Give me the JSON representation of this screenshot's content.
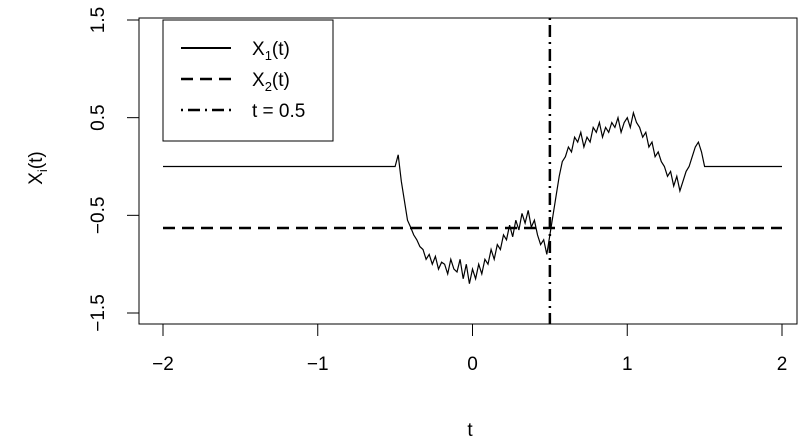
{
  "chart_data": {
    "type": "line",
    "xlabel": "t",
    "ylabel": {
      "base": "X",
      "sub": "i",
      "tail": "(t)"
    },
    "xlim": [
      -2,
      2
    ],
    "ylim": [
      -1.5,
      1.5
    ],
    "x_ticks": [
      -2,
      -1,
      0,
      1,
      2
    ],
    "x_tick_labels": [
      "−2",
      "−1",
      "0",
      "1",
      "2"
    ],
    "y_ticks": [
      -1.5,
      -0.5,
      0.5,
      1.5
    ],
    "y_tick_labels": [
      "−1.5",
      "−0.5",
      "0.5",
      "1.5"
    ],
    "grid": false,
    "legend_position": "top-left",
    "series": [
      {
        "name": "X1(t)",
        "legend": {
          "base": "X",
          "sub": "1",
          "tail": "(t)"
        },
        "style": "solid",
        "x": [
          -2.0,
          -0.5,
          -0.48,
          -0.46,
          -0.44,
          -0.42,
          -0.4,
          -0.38,
          -0.36,
          -0.34,
          -0.32,
          -0.3,
          -0.28,
          -0.26,
          -0.24,
          -0.22,
          -0.2,
          -0.18,
          -0.16,
          -0.14,
          -0.12,
          -0.1,
          -0.08,
          -0.06,
          -0.04,
          -0.02,
          0.0,
          0.02,
          0.04,
          0.06,
          0.08,
          0.1,
          0.12,
          0.14,
          0.16,
          0.18,
          0.2,
          0.22,
          0.24,
          0.26,
          0.28,
          0.3,
          0.32,
          0.34,
          0.36,
          0.38,
          0.4,
          0.42,
          0.44,
          0.46,
          0.48,
          0.5,
          0.52,
          0.54,
          0.56,
          0.58,
          0.6,
          0.62,
          0.64,
          0.66,
          0.68,
          0.7,
          0.72,
          0.74,
          0.76,
          0.78,
          0.8,
          0.82,
          0.84,
          0.86,
          0.88,
          0.9,
          0.92,
          0.94,
          0.96,
          0.98,
          1.0,
          1.02,
          1.04,
          1.06,
          1.08,
          1.1,
          1.12,
          1.14,
          1.16,
          1.18,
          1.2,
          1.22,
          1.24,
          1.26,
          1.28,
          1.3,
          1.32,
          1.34,
          1.36,
          1.38,
          1.4,
          1.42,
          1.44,
          1.46,
          1.48,
          1.5,
          2.0
        ],
        "y": [
          0.0,
          0.0,
          0.12,
          -0.15,
          -0.35,
          -0.55,
          -0.62,
          -0.7,
          -0.75,
          -0.82,
          -0.85,
          -0.95,
          -0.9,
          -1.0,
          -0.92,
          -1.05,
          -0.98,
          -1.0,
          -1.1,
          -0.95,
          -1.05,
          -1.08,
          -0.95,
          -1.15,
          -1.0,
          -1.2,
          -1.05,
          -1.15,
          -1.0,
          -1.1,
          -0.95,
          -1.0,
          -0.85,
          -0.95,
          -0.8,
          -0.85,
          -0.7,
          -0.75,
          -0.6,
          -0.72,
          -0.55,
          -0.65,
          -0.48,
          -0.58,
          -0.45,
          -0.62,
          -0.55,
          -0.7,
          -0.8,
          -0.75,
          -0.9,
          -0.7,
          -0.5,
          -0.3,
          -0.1,
          0.05,
          0.1,
          0.2,
          0.15,
          0.3,
          0.25,
          0.35,
          0.2,
          0.3,
          0.25,
          0.4,
          0.35,
          0.45,
          0.3,
          0.4,
          0.35,
          0.45,
          0.4,
          0.5,
          0.35,
          0.45,
          0.5,
          0.4,
          0.55,
          0.45,
          0.4,
          0.3,
          0.35,
          0.2,
          0.25,
          0.1,
          0.15,
          0.05,
          0.0,
          -0.1,
          -0.05,
          -0.2,
          -0.1,
          -0.25,
          -0.15,
          -0.05,
          0.0,
          0.1,
          0.2,
          0.25,
          0.15,
          0.0,
          0.0
        ]
      },
      {
        "name": "X2(t)",
        "legend": {
          "base": "X",
          "sub": "2",
          "tail": "(t)"
        },
        "style": "dashed",
        "x": [
          -2.0,
          2.0
        ],
        "y": [
          -0.63,
          -0.63
        ]
      }
    ],
    "reference_lines": [
      {
        "name": "t = 0.5",
        "legend": {
          "base": "t = 0.5",
          "sub": "",
          "tail": ""
        },
        "orientation": "vertical",
        "x": 0.5,
        "style": "dotdash"
      }
    ]
  }
}
